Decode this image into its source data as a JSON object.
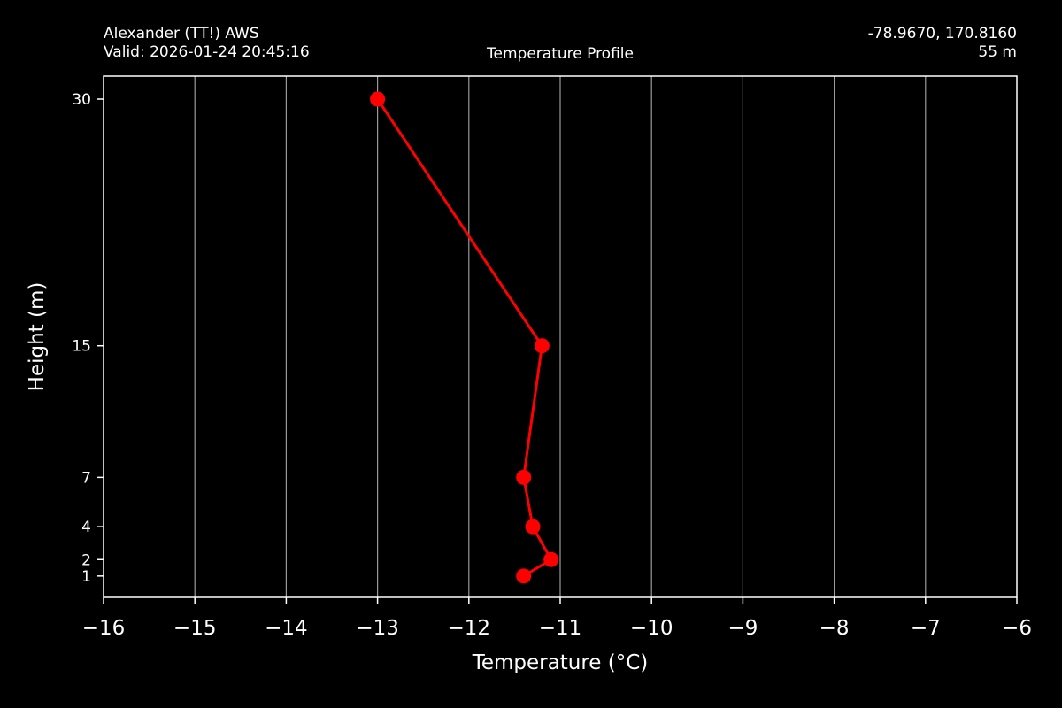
{
  "header": {
    "station": "Alexander (TT!) AWS",
    "valid": "Valid: 2026-01-24 20:45:16",
    "title": "Temperature Profile",
    "coords": "-78.9670, 170.8160",
    "elevation": "55 m"
  },
  "chart_data": {
    "type": "line",
    "title": "Temperature Profile",
    "xlabel": "Temperature (°C)",
    "ylabel": "Height (m)",
    "xlim": [
      -16,
      -6
    ],
    "ylim": [
      -0.3,
      31.4
    ],
    "x_ticks": [
      -16,
      -15,
      -14,
      -13,
      -12,
      -11,
      -10,
      -9,
      -8,
      -7,
      -6
    ],
    "x_tick_labels": [
      "−16",
      "−15",
      "−14",
      "−13",
      "−12",
      "−11",
      "−10",
      "−9",
      "−8",
      "−7",
      "−6"
    ],
    "y_ticks": [
      1,
      2,
      4,
      7,
      15,
      30
    ],
    "y_tick_labels": [
      "1",
      "2",
      "4",
      "7",
      "15",
      "30"
    ],
    "grid": "vertical",
    "series": [
      {
        "color": "#ff0000",
        "temperature": [
          -11.4,
          -11.1,
          -11.3,
          -11.4,
          -11.2,
          -13.0
        ],
        "height": [
          1,
          2,
          4,
          7,
          15,
          30
        ]
      }
    ]
  },
  "colors": {
    "background": "#000000",
    "axes": "#ffffff",
    "grid": "#9a9a9a",
    "series": "#ff0000"
  }
}
